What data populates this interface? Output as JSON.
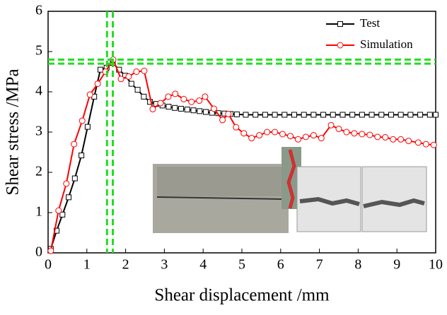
{
  "chart_data": {
    "type": "line",
    "x_label": "Shear displacement /mm",
    "y_label": "Shear stress /MPa",
    "xlim": [
      0,
      10
    ],
    "ylim": [
      0,
      6
    ],
    "xticks": [
      0,
      1,
      2,
      3,
      4,
      5,
      6,
      7,
      8,
      9,
      10
    ],
    "yticks": [
      0,
      1,
      2,
      3,
      4,
      5,
      6
    ],
    "legend_position": "upper right",
    "reference_color": "#22dd22",
    "reference_x": [
      1.52,
      1.67
    ],
    "reference_y": [
      4.7,
      4.8
    ],
    "series": [
      {
        "name": "Test",
        "color": "#000000",
        "marker": "square",
        "x": [
          0.07,
          0.22,
          0.37,
          0.53,
          0.69,
          0.86,
          1.02,
          1.19,
          1.35,
          1.51,
          1.67,
          1.83,
          1.99,
          2.15,
          2.31,
          2.47,
          2.63,
          2.79,
          2.95,
          3.11,
          3.27,
          3.43,
          3.59,
          3.75,
          3.91,
          4.07,
          4.23,
          4.39,
          4.55,
          4.71,
          4.87,
          5.1,
          5.35,
          5.6,
          5.85,
          6.1,
          6.35,
          6.6,
          6.85,
          7.1,
          7.35,
          7.6,
          7.85,
          8.1,
          8.35,
          8.6,
          8.85,
          9.1,
          9.35,
          9.6,
          9.85,
          10
        ],
        "values": [
          0.1,
          0.55,
          0.95,
          1.38,
          1.85,
          2.42,
          3.13,
          3.88,
          4.55,
          4.6,
          4.72,
          4.55,
          4.4,
          4.2,
          4.05,
          3.88,
          3.75,
          3.7,
          3.66,
          3.63,
          3.6,
          3.58,
          3.56,
          3.54,
          3.52,
          3.5,
          3.48,
          3.47,
          3.46,
          3.45,
          3.44,
          3.43,
          3.43,
          3.43,
          3.43,
          3.43,
          3.43,
          3.43,
          3.43,
          3.43,
          3.43,
          3.43,
          3.43,
          3.43,
          3.43,
          3.43,
          3.43,
          3.43,
          3.43,
          3.43,
          3.43,
          3.43
        ]
      },
      {
        "name": "Simulation",
        "color": "#ff0000",
        "marker": "circle",
        "x": [
          0.07,
          0.27,
          0.47,
          0.67,
          0.88,
          1.08,
          1.28,
          1.48,
          1.68,
          1.88,
          2.08,
          2.28,
          2.48,
          2.7,
          2.9,
          3.1,
          3.28,
          3.5,
          3.7,
          3.9,
          4.05,
          4.28,
          4.5,
          4.65,
          4.85,
          5.05,
          5.25,
          5.45,
          5.65,
          5.85,
          6.05,
          6.25,
          6.45,
          6.65,
          6.85,
          7.05,
          7.3,
          7.5,
          7.7,
          7.9,
          8.1,
          8.3,
          8.5,
          8.7,
          8.9,
          9.1,
          9.3,
          9.55,
          9.75,
          9.95
        ],
        "values": [
          0.05,
          1.05,
          1.72,
          2.7,
          3.28,
          3.93,
          4.2,
          4.5,
          4.8,
          4.32,
          4.38,
          4.5,
          4.52,
          3.57,
          3.72,
          3.88,
          3.95,
          3.82,
          3.75,
          3.78,
          3.88,
          3.58,
          3.3,
          3.45,
          3.12,
          2.97,
          2.85,
          2.92,
          3.0,
          3.0,
          2.95,
          2.9,
          2.82,
          2.88,
          2.92,
          2.85,
          3.17,
          3.08,
          3.0,
          2.97,
          2.95,
          2.93,
          2.88,
          2.87,
          2.82,
          2.82,
          2.78,
          2.74,
          2.7,
          2.68
        ]
      }
    ]
  }
}
